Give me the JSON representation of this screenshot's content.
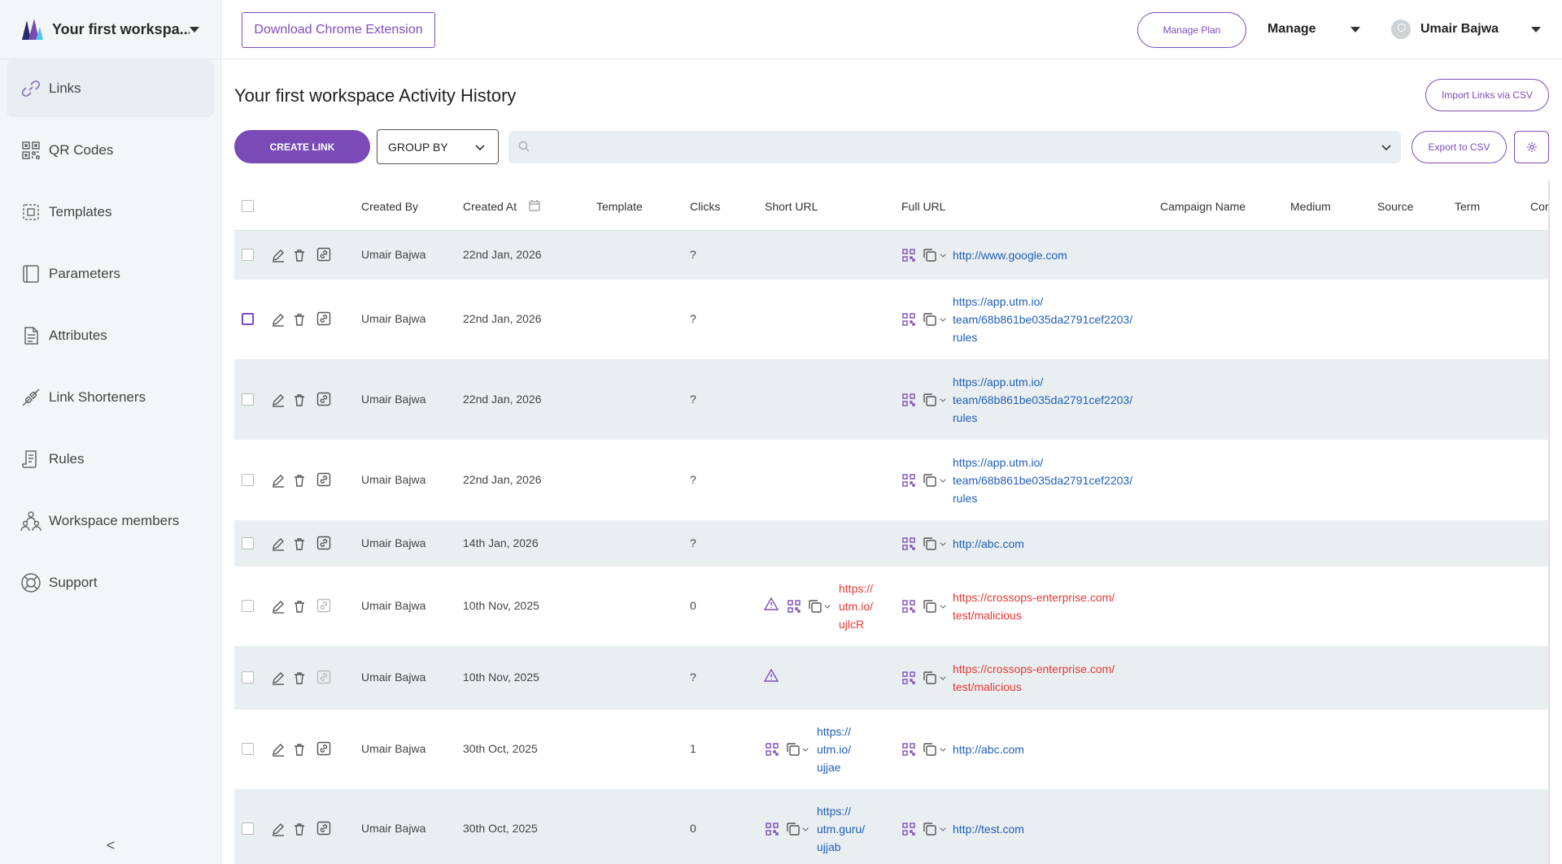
{
  "workspace": {
    "name": "Your first workspa..."
  },
  "sidebar": {
    "items": [
      {
        "label": "Links",
        "icon": "link-icon"
      },
      {
        "label": "QR Codes",
        "icon": "qr-code-icon"
      },
      {
        "label": "Templates",
        "icon": "templates-icon"
      },
      {
        "label": "Parameters",
        "icon": "parameters-icon"
      },
      {
        "label": "Attributes",
        "icon": "attributes-icon"
      },
      {
        "label": "Link Shorteners",
        "icon": "link-shortener-icon"
      },
      {
        "label": "Rules",
        "icon": "rules-icon"
      },
      {
        "label": "Workspace members",
        "icon": "members-icon"
      },
      {
        "label": "Support",
        "icon": "support-icon"
      }
    ],
    "collapse_label": "<"
  },
  "topbar": {
    "extension_button": "Download Chrome Extension",
    "manage_plan": "Manage Plan",
    "manage": "Manage",
    "user": "Umair Bajwa"
  },
  "main": {
    "title": "Your first workspace Activity History",
    "import_button": "Import Links via CSV",
    "create_button": "CREATE LINK",
    "group_by": "GROUP BY",
    "search_placeholder": "",
    "export_button": "Export to CSV"
  },
  "table": {
    "columns": [
      "Created By",
      "Created At",
      "Template",
      "Clicks",
      "Short URL",
      "Full URL",
      "Campaign Name",
      "Medium",
      "Source",
      "Term",
      "Cor"
    ],
    "rows": [
      {
        "created_by": "Umair Bajwa",
        "created_at": "22nd Jan, 2026",
        "clicks": "?",
        "short_url": [],
        "full_url": [
          "http://www.google.com"
        ],
        "warning": false,
        "malicious": false
      },
      {
        "created_by": "Umair Bajwa",
        "created_at": "22nd Jan, 2026",
        "clicks": "?",
        "short_url": [],
        "full_url": [
          "https://app.utm.io/",
          "team/68b861be035da2791cef2203/",
          "rules"
        ],
        "warning": false,
        "malicious": false
      },
      {
        "created_by": "Umair Bajwa",
        "created_at": "22nd Jan, 2026",
        "clicks": "?",
        "short_url": [],
        "full_url": [
          "https://app.utm.io/",
          "team/68b861be035da2791cef2203/",
          "rules"
        ],
        "warning": false,
        "malicious": false
      },
      {
        "created_by": "Umair Bajwa",
        "created_at": "22nd Jan, 2026",
        "clicks": "?",
        "short_url": [],
        "full_url": [
          "https://app.utm.io/",
          "team/68b861be035da2791cef2203/",
          "rules"
        ],
        "warning": false,
        "malicious": false
      },
      {
        "created_by": "Umair Bajwa",
        "created_at": "14th Jan, 2026",
        "clicks": "?",
        "short_url": [],
        "full_url": [
          "http://abc.com"
        ],
        "warning": false,
        "malicious": false
      },
      {
        "created_by": "Umair Bajwa",
        "created_at": "10th Nov, 2025",
        "clicks": "0",
        "short_url": [
          "https://",
          "utm.io/",
          "ujlcR"
        ],
        "full_url": [
          "https://crossops-enterprise.com/",
          "test/malicious"
        ],
        "warning": true,
        "malicious": true
      },
      {
        "created_by": "Umair Bajwa",
        "created_at": "10th Nov, 2025",
        "clicks": "?",
        "short_url": [],
        "full_url": [
          "https://crossops-enterprise.com/",
          "test/malicious"
        ],
        "warning": true,
        "malicious": true
      },
      {
        "created_by": "Umair Bajwa",
        "created_at": "30th Oct, 2025",
        "clicks": "1",
        "short_url": [
          "https://",
          "utm.io/",
          "ujjae"
        ],
        "full_url": [
          "http://abc.com"
        ],
        "warning": false,
        "malicious": false
      },
      {
        "created_by": "Umair Bajwa",
        "created_at": "30th Oct, 2025",
        "clicks": "0",
        "short_url": [
          "https://",
          "utm.guru/",
          "ujjab"
        ],
        "full_url": [
          "http://test.com"
        ],
        "warning": false,
        "malicious": false
      }
    ]
  },
  "colors": {
    "accent": "#7c4dbb",
    "link": "#1f5fb8",
    "danger": "#e53935",
    "sidebar_bg": "#f2f6f8",
    "row_shade": "#e9eef1"
  }
}
